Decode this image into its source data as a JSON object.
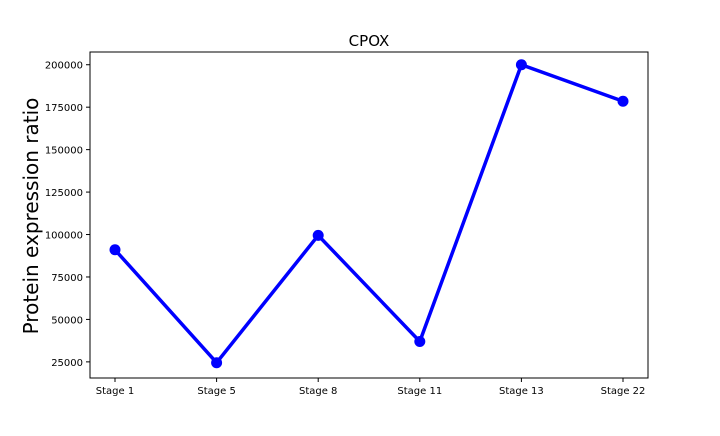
{
  "chart_data": {
    "type": "line",
    "title": "CPOX",
    "xlabel": "",
    "ylabel": "Protein expression ratio",
    "categories": [
      "Stage 1",
      "Stage 5",
      "Stage 8",
      "Stage 11",
      "Stage 13",
      "Stage 22"
    ],
    "series": [
      {
        "values": [
          91000,
          24500,
          99500,
          37000,
          200000,
          178500
        ],
        "color": "#0000ff",
        "marker": "circle"
      }
    ],
    "ylim": [
      15500,
      207500
    ],
    "yticks": [
      25000,
      50000,
      75000,
      100000,
      125000,
      150000,
      175000,
      200000
    ],
    "ytick_labels": [
      "25000",
      "50000",
      "75000",
      "100000",
      "125000",
      "150000",
      "175000",
      "200000"
    ],
    "grid": false,
    "legend": false
  }
}
